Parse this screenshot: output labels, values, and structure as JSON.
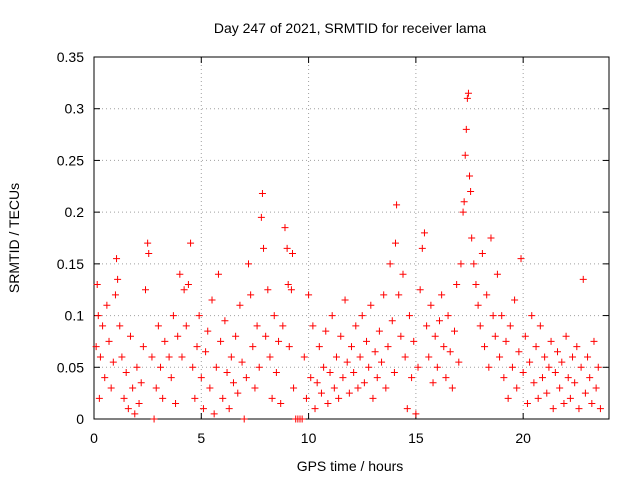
{
  "chart_data": {
    "type": "scatter",
    "title": "Day 247 of 2021, SRMTID for receiver lama",
    "xlabel": "GPS time / hours",
    "ylabel": "SRMTID / TECUs",
    "xlim": [
      0,
      24
    ],
    "ylim": [
      0,
      0.35
    ],
    "x_ticks": [
      0,
      5,
      10,
      15,
      20
    ],
    "x_tick_labels": [
      "0",
      "5",
      "10",
      "15",
      "20"
    ],
    "y_ticks": [
      0,
      0.05,
      0.1,
      0.15,
      0.2,
      0.25,
      0.3,
      0.35
    ],
    "y_tick_labels": [
      "0",
      "0.05",
      "0.1",
      "0.15",
      "0.2",
      "0.25",
      "0.3",
      "0.35"
    ],
    "grid": true,
    "marker": "+",
    "color": "#ff0000",
    "series": [
      {
        "name": "SRMTID",
        "points": [
          [
            0.1,
            0.07
          ],
          [
            0.15,
            0.13
          ],
          [
            0.2,
            0.1
          ],
          [
            0.25,
            0.02
          ],
          [
            0.3,
            0.06
          ],
          [
            0.4,
            0.09
          ],
          [
            0.5,
            0.04
          ],
          [
            0.6,
            0.11
          ],
          [
            0.7,
            0.075
          ],
          [
            0.8,
            0.03
          ],
          [
            0.9,
            0.055
          ],
          [
            1.0,
            0.12
          ],
          [
            1.05,
            0.155
          ],
          [
            1.1,
            0.135
          ],
          [
            1.2,
            0.09
          ],
          [
            1.3,
            0.06
          ],
          [
            1.4,
            0.02
          ],
          [
            1.5,
            0.045
          ],
          [
            1.6,
            0.01
          ],
          [
            1.7,
            0.08
          ],
          [
            1.8,
            0.03
          ],
          [
            1.9,
            0.005
          ],
          [
            2.0,
            0.05
          ],
          [
            2.1,
            0.015
          ],
          [
            2.2,
            0.035
          ],
          [
            2.3,
            0.07
          ],
          [
            2.4,
            0.125
          ],
          [
            2.5,
            0.17
          ],
          [
            2.55,
            0.16
          ],
          [
            2.7,
            0.06
          ],
          [
            2.8,
            0.0
          ],
          [
            2.9,
            0.03
          ],
          [
            3.0,
            0.09
          ],
          [
            3.1,
            0.05
          ],
          [
            3.2,
            0.02
          ],
          [
            3.3,
            0.075
          ],
          [
            3.5,
            0.06
          ],
          [
            3.6,
            0.04
          ],
          [
            3.7,
            0.1
          ],
          [
            3.8,
            0.015
          ],
          [
            3.9,
            0.08
          ],
          [
            4.0,
            0.14
          ],
          [
            4.1,
            0.06
          ],
          [
            4.2,
            0.125
          ],
          [
            4.3,
            0.09
          ],
          [
            4.4,
            0.13
          ],
          [
            4.5,
            0.17
          ],
          [
            4.6,
            0.05
          ],
          [
            4.7,
            0.02
          ],
          [
            4.8,
            0.07
          ],
          [
            4.9,
            0.1
          ],
          [
            5.0,
            0.04
          ],
          [
            5.1,
            0.01
          ],
          [
            5.2,
            0.065
          ],
          [
            5.3,
            0.085
          ],
          [
            5.4,
            0.03
          ],
          [
            5.5,
            0.115
          ],
          [
            5.6,
            0.005
          ],
          [
            5.7,
            0.05
          ],
          [
            5.8,
            0.14
          ],
          [
            5.9,
            0.075
          ],
          [
            6.0,
            0.02
          ],
          [
            6.1,
            0.095
          ],
          [
            6.2,
            0.045
          ],
          [
            6.3,
            0.01
          ],
          [
            6.4,
            0.06
          ],
          [
            6.5,
            0.035
          ],
          [
            6.6,
            0.08
          ],
          [
            6.7,
            0.025
          ],
          [
            6.8,
            0.11
          ],
          [
            6.9,
            0.055
          ],
          [
            7.0,
            0.0
          ],
          [
            7.1,
            0.04
          ],
          [
            7.2,
            0.15
          ],
          [
            7.3,
            0.12
          ],
          [
            7.4,
            0.07
          ],
          [
            7.5,
            0.03
          ],
          [
            7.6,
            0.09
          ],
          [
            7.7,
            0.05
          ],
          [
            7.8,
            0.195
          ],
          [
            7.85,
            0.218
          ],
          [
            7.9,
            0.165
          ],
          [
            8.0,
            0.08
          ],
          [
            8.1,
            0.125
          ],
          [
            8.2,
            0.06
          ],
          [
            8.3,
            0.02
          ],
          [
            8.4,
            0.1
          ],
          [
            8.5,
            0.045
          ],
          [
            8.6,
            0.075
          ],
          [
            8.7,
            0.015
          ],
          [
            8.8,
            0.09
          ],
          [
            8.9,
            0.185
          ],
          [
            9.0,
            0.165
          ],
          [
            9.05,
            0.13
          ],
          [
            9.1,
            0.07
          ],
          [
            9.2,
            0.125
          ],
          [
            9.25,
            0.16
          ],
          [
            9.3,
            0.03
          ],
          [
            9.4,
            0.0
          ],
          [
            9.5,
            0.0
          ],
          [
            9.6,
            0.0
          ],
          [
            9.7,
            0.0
          ],
          [
            9.8,
            0.06
          ],
          [
            9.9,
            0.02
          ],
          [
            10.0,
            0.12
          ],
          [
            10.1,
            0.04
          ],
          [
            10.2,
            0.09
          ],
          [
            10.3,
            0.01
          ],
          [
            10.4,
            0.035
          ],
          [
            10.5,
            0.07
          ],
          [
            10.6,
            0.025
          ],
          [
            10.7,
            0.05
          ],
          [
            10.8,
            0.085
          ],
          [
            10.9,
            0.015
          ],
          [
            11.0,
            0.045
          ],
          [
            11.1,
            0.1
          ],
          [
            11.2,
            0.03
          ],
          [
            11.3,
            0.06
          ],
          [
            11.4,
            0.02
          ],
          [
            11.5,
            0.08
          ],
          [
            11.6,
            0.04
          ],
          [
            11.7,
            0.115
          ],
          [
            11.8,
            0.055
          ],
          [
            11.9,
            0.025
          ],
          [
            12.0,
            0.07
          ],
          [
            12.1,
            0.045
          ],
          [
            12.2,
            0.09
          ],
          [
            12.3,
            0.03
          ],
          [
            12.4,
            0.06
          ],
          [
            12.5,
            0.1
          ],
          [
            12.6,
            0.035
          ],
          [
            12.7,
            0.075
          ],
          [
            12.8,
            0.05
          ],
          [
            12.9,
            0.11
          ],
          [
            13.0,
            0.02
          ],
          [
            13.1,
            0.065
          ],
          [
            13.2,
            0.04
          ],
          [
            13.3,
            0.085
          ],
          [
            13.4,
            0.055
          ],
          [
            13.5,
            0.12
          ],
          [
            13.6,
            0.03
          ],
          [
            13.7,
            0.07
          ],
          [
            13.8,
            0.15
          ],
          [
            13.9,
            0.095
          ],
          [
            14.0,
            0.045
          ],
          [
            14.05,
            0.17
          ],
          [
            14.1,
            0.207
          ],
          [
            14.2,
            0.12
          ],
          [
            14.3,
            0.08
          ],
          [
            14.4,
            0.14
          ],
          [
            14.5,
            0.06
          ],
          [
            14.6,
            0.01
          ],
          [
            14.7,
            0.1
          ],
          [
            14.8,
            0.04
          ],
          [
            14.9,
            0.075
          ],
          [
            15.0,
            0.005
          ],
          [
            15.1,
            0.05
          ],
          [
            15.2,
            0.125
          ],
          [
            15.3,
            0.165
          ],
          [
            15.4,
            0.18
          ],
          [
            15.5,
            0.09
          ],
          [
            15.6,
            0.06
          ],
          [
            15.7,
            0.11
          ],
          [
            15.8,
            0.035
          ],
          [
            15.9,
            0.08
          ],
          [
            16.0,
            0.05
          ],
          [
            16.1,
            0.095
          ],
          [
            16.2,
            0.12
          ],
          [
            16.3,
            0.07
          ],
          [
            16.4,
            0.04
          ],
          [
            16.5,
            0.1
          ],
          [
            16.6,
            0.065
          ],
          [
            16.7,
            0.03
          ],
          [
            16.8,
            0.085
          ],
          [
            16.9,
            0.13
          ],
          [
            17.0,
            0.055
          ],
          [
            17.1,
            0.15
          ],
          [
            17.2,
            0.2
          ],
          [
            17.25,
            0.21
          ],
          [
            17.3,
            0.255
          ],
          [
            17.35,
            0.28
          ],
          [
            17.4,
            0.31
          ],
          [
            17.45,
            0.315
          ],
          [
            17.5,
            0.235
          ],
          [
            17.55,
            0.22
          ],
          [
            17.6,
            0.175
          ],
          [
            17.7,
            0.15
          ],
          [
            17.8,
            0.13
          ],
          [
            17.9,
            0.11
          ],
          [
            18.0,
            0.09
          ],
          [
            18.1,
            0.16
          ],
          [
            18.2,
            0.07
          ],
          [
            18.3,
            0.12
          ],
          [
            18.4,
            0.05
          ],
          [
            18.5,
            0.175
          ],
          [
            18.6,
            0.1
          ],
          [
            18.7,
            0.08
          ],
          [
            18.8,
            0.14
          ],
          [
            18.9,
            0.06
          ],
          [
            19.0,
            0.1
          ],
          [
            19.1,
            0.04
          ],
          [
            19.2,
            0.075
          ],
          [
            19.3,
            0.02
          ],
          [
            19.4,
            0.09
          ],
          [
            19.5,
            0.05
          ],
          [
            19.6,
            0.115
          ],
          [
            19.7,
            0.03
          ],
          [
            19.8,
            0.065
          ],
          [
            19.9,
            0.155
          ],
          [
            20.0,
            0.045
          ],
          [
            20.1,
            0.08
          ],
          [
            20.2,
            0.015
          ],
          [
            20.3,
            0.055
          ],
          [
            20.4,
            0.1
          ],
          [
            20.5,
            0.035
          ],
          [
            20.6,
            0.07
          ],
          [
            20.7,
            0.02
          ],
          [
            20.8,
            0.09
          ],
          [
            20.9,
            0.04
          ],
          [
            21.0,
            0.06
          ],
          [
            21.1,
            0.025
          ],
          [
            21.2,
            0.05
          ],
          [
            21.3,
            0.075
          ],
          [
            21.4,
            0.01
          ],
          [
            21.5,
            0.045
          ],
          [
            21.6,
            0.065
          ],
          [
            21.7,
            0.03
          ],
          [
            21.8,
            0.055
          ],
          [
            21.9,
            0.015
          ],
          [
            22.0,
            0.08
          ],
          [
            22.1,
            0.04
          ],
          [
            22.2,
            0.02
          ],
          [
            22.3,
            0.06
          ],
          [
            22.4,
            0.035
          ],
          [
            22.5,
            0.07
          ],
          [
            22.6,
            0.01
          ],
          [
            22.7,
            0.05
          ],
          [
            22.8,
            0.135
          ],
          [
            22.9,
            0.025
          ],
          [
            23.0,
            0.06
          ],
          [
            23.1,
            0.04
          ],
          [
            23.2,
            0.015
          ],
          [
            23.3,
            0.075
          ],
          [
            23.4,
            0.03
          ],
          [
            23.5,
            0.05
          ],
          [
            23.6,
            0.01
          ]
        ]
      }
    ]
  }
}
